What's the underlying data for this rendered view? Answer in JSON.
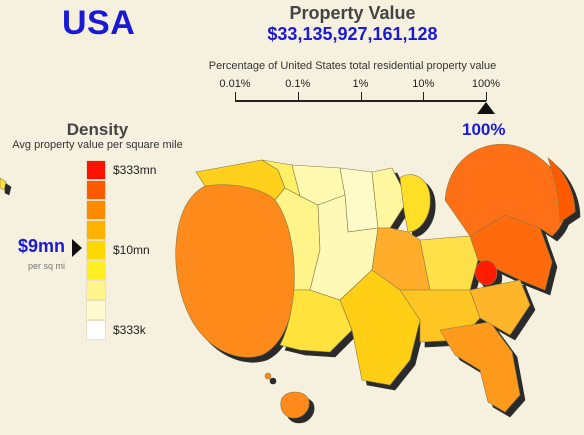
{
  "header": {
    "region": "USA",
    "property_value_title": "Property Value",
    "property_value_total": "$33,135,927,161,128"
  },
  "percent_scale": {
    "caption": "Percentage of United States total residential property value",
    "ticks": [
      "0.01%",
      "0.1%",
      "1%",
      "10%",
      "100%"
    ],
    "selected_value": "100%",
    "selected_log10_percent": 2
  },
  "density_legend": {
    "title": "Density",
    "subtitle": "Avg property value per square mile",
    "swatch_colors": [
      "#ff1100",
      "#ff5a00",
      "#ff8a00",
      "#ffb300",
      "#ffd800",
      "#ffee22",
      "#fff58c",
      "#fffad0",
      "#ffffff"
    ],
    "labels": {
      "top": "$333mn",
      "middle": "$10mn",
      "bottom": "$333k"
    },
    "marker_value": "$9mn",
    "marker_unit": "per sq mi"
  },
  "map": {
    "shadow_color": "#2a2a2a",
    "border_color": "#8a7a40"
  }
}
